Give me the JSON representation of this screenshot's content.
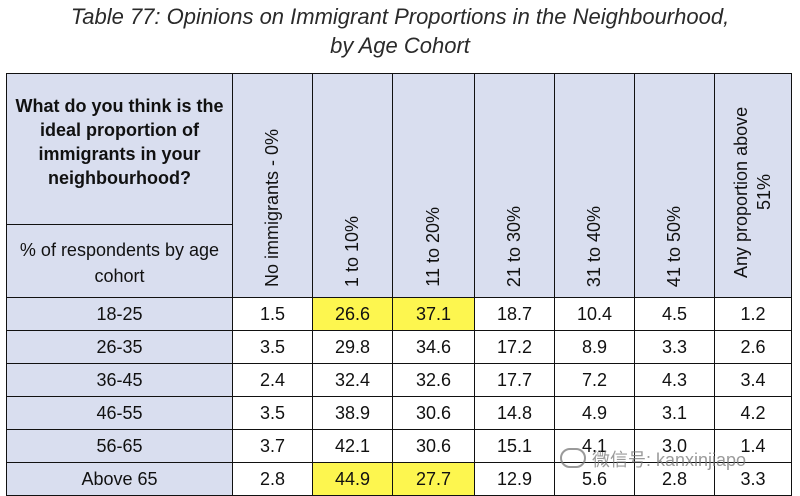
{
  "title": {
    "line1": "Table 77: Opinions on Immigrant Proportions in the Neighbourhood,",
    "line2": "by Age Cohort"
  },
  "table": {
    "question": "What do you think is the ideal proportion of immigrants in your neighbourhood?",
    "subheader": "% of respondents by age cohort",
    "columns": [
      "No immigrants - 0%",
      "1 to 10%",
      "11 to 20%",
      "21 to 30%",
      "31 to 40%",
      "41 to 50%",
      "Any proportion above 51%"
    ],
    "rows": [
      {
        "age": "18-25",
        "values": [
          "1.5",
          "26.6",
          "37.1",
          "18.7",
          "10.4",
          "4.5",
          "1.2"
        ]
      },
      {
        "age": "26-35",
        "values": [
          "3.5",
          "29.8",
          "34.6",
          "17.2",
          "8.9",
          "3.3",
          "2.6"
        ]
      },
      {
        "age": "36-45",
        "values": [
          "2.4",
          "32.4",
          "32.6",
          "17.7",
          "7.2",
          "4.3",
          "3.4"
        ]
      },
      {
        "age": "46-55",
        "values": [
          "3.5",
          "38.9",
          "30.6",
          "14.8",
          "4.9",
          "3.1",
          "4.2"
        ]
      },
      {
        "age": "56-65",
        "values": [
          "3.7",
          "42.1",
          "30.6",
          "15.1",
          "4.1",
          "3.0",
          "1.4"
        ]
      },
      {
        "age": "Above 65",
        "values": [
          "2.8",
          "44.9",
          "27.7",
          "12.9",
          "5.6",
          "2.8",
          "3.3"
        ]
      }
    ],
    "highlight_color": "#fdf64f",
    "header_color": "#d9deef"
  },
  "watermark": {
    "text": "微信号: kanxinjiapo",
    "icon": "wechat-icon"
  }
}
